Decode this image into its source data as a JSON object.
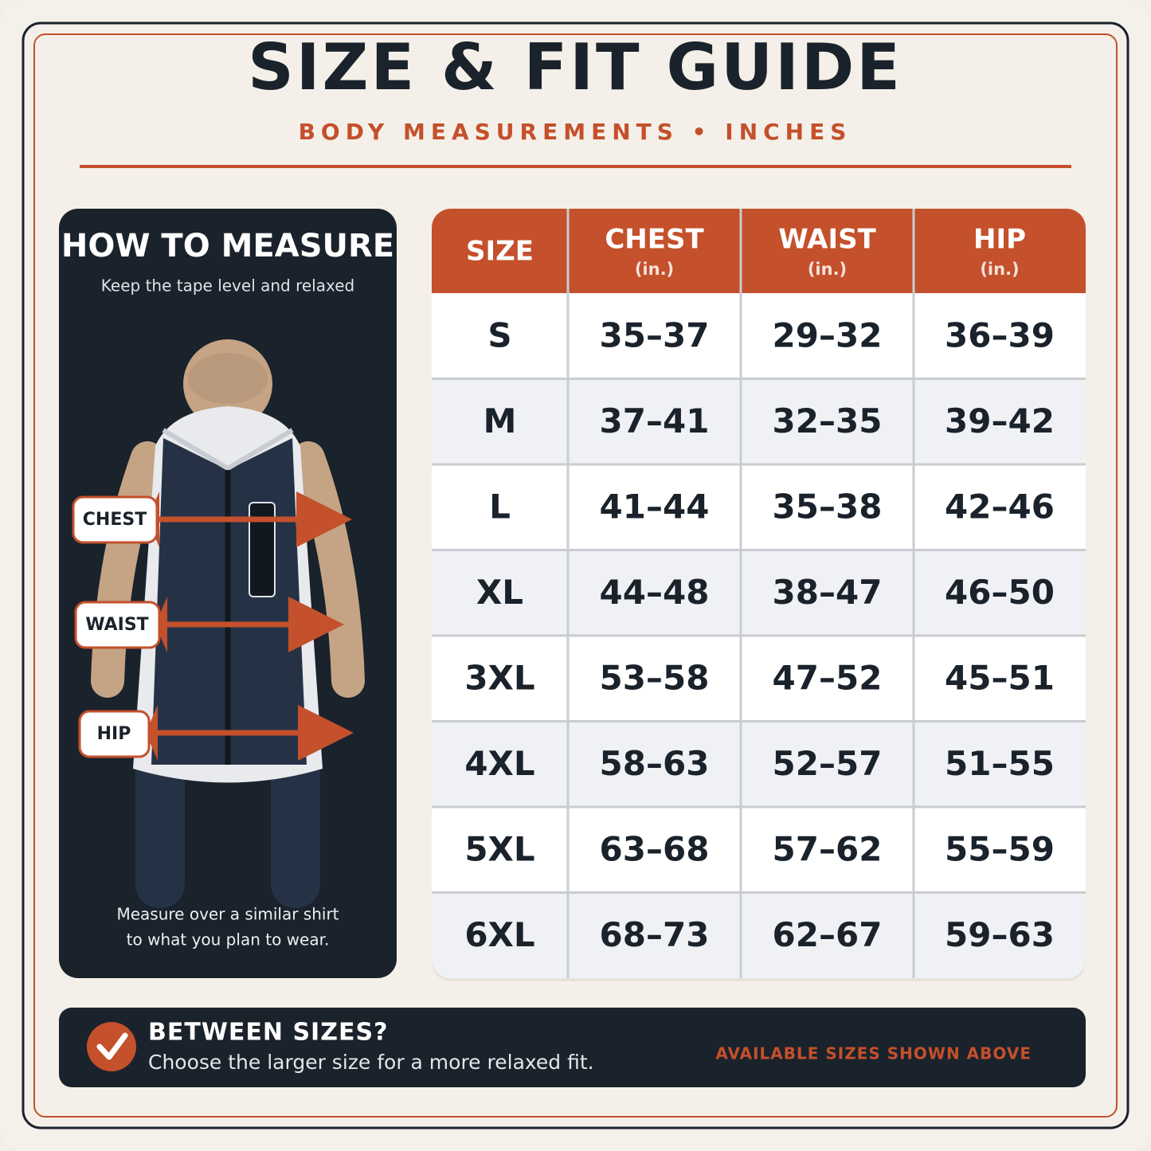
{
  "header": {
    "title": "SIZE & FIT GUIDE",
    "subtitle": "BODY MEASUREMENTS • INCHES"
  },
  "measure_panel": {
    "title": "HOW TO MEASURE",
    "subtitle": "Keep the tape level and relaxed",
    "labels": [
      "CHEST",
      "WAIST",
      "HIP"
    ],
    "note": [
      "Measure over a similar shirt",
      "to what you plan to wear."
    ]
  },
  "table": {
    "columns": [
      {
        "name": "SIZE"
      },
      {
        "name": "CHEST",
        "unit": "(in.)"
      },
      {
        "name": "WAIST",
        "unit": "(in.)"
      },
      {
        "name": "HIP",
        "unit": "(in.)"
      }
    ],
    "rows": [
      [
        "S",
        "35–37",
        "29–32",
        "36–39"
      ],
      [
        "M",
        "37–41",
        "32–35",
        "39–42"
      ],
      [
        "L",
        "41–44",
        "35–38",
        "42–46"
      ],
      [
        "XL",
        "44–48",
        "38–47",
        "46–50"
      ],
      [
        "3XL",
        "53–58",
        "47–52",
        "45–51"
      ],
      [
        "4XL",
        "58–63",
        "52–57",
        "51–55"
      ],
      [
        "5XL",
        "63–68",
        "57–62",
        "55–59"
      ],
      [
        "6XL",
        "68–73",
        "62–67",
        "59–63"
      ]
    ]
  },
  "footer": {
    "title": "BETWEEN SIZES?",
    "text": "Choose the larger size for a more relaxed fit.",
    "note": "AVAILABLE SIZES SHOWN ABOVE"
  }
}
